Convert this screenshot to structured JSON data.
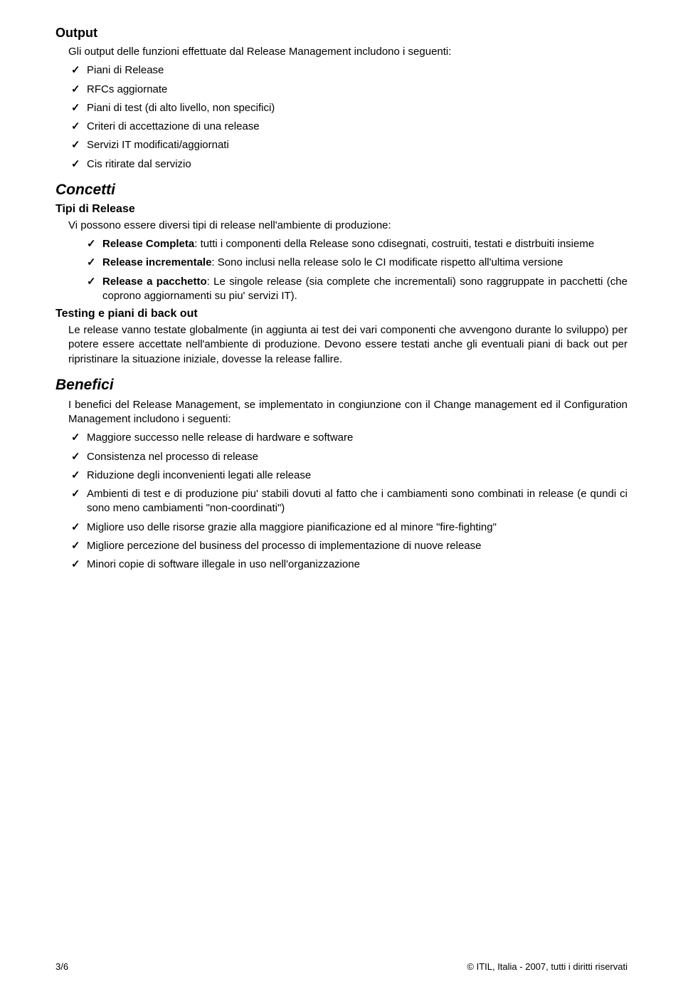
{
  "sections": {
    "output": {
      "heading": "Output",
      "intro": "Gli output delle funzioni effettuate dal Release Management includono i seguenti:",
      "items": [
        "Piani di Release",
        "RFCs aggiornate",
        "Piani di test (di alto livello, non specifici)",
        "Criteri di accettazione di una release",
        "Servizi IT modificati/aggiornati",
        "Cis ritirate dal servizio"
      ]
    },
    "concetti": {
      "heading": "Concetti",
      "tipi": {
        "heading": "Tipi di Release",
        "intro": "Vi possono essere diversi tipi di release nell'ambiente di produzione:",
        "items": [
          {
            "bold": "Release Completa",
            "rest": ": tutti i componenti della Release sono cdisegnati, costruiti, testati e distrbuiti insieme"
          },
          {
            "bold": "Release incrementale",
            "rest": ": Sono inclusi nella release solo le CI modificate rispetto all'ultima versione"
          },
          {
            "bold": "Release a pacchetto",
            "rest": ": Le singole release (sia complete che incrementali) sono raggruppate in pacchetti (che coprono aggiornamenti su piu' servizi IT)."
          }
        ]
      },
      "testing": {
        "heading": "Testing e piani di back out",
        "body": "Le release vanno testate globalmente (in aggiunta ai test dei vari componenti che avvengono durante lo sviluppo) per potere essere accettate nell'ambiente di produzione. Devono essere testati anche gli eventuali piani di back out per ripristinare la situazione iniziale, dovesse la release fallire."
      }
    },
    "benefici": {
      "heading": "Benefici",
      "intro": "I benefici del Release Management, se implementato in congiunzione con il Change management ed il Configuration Management includono i seguenti:",
      "items": [
        "Maggiore successo nelle release di hardware e software",
        "Consistenza nel processo di release",
        "Riduzione degli inconvenienti legati alle release",
        "Ambienti di test e di produzione piu' stabili dovuti al fatto che i cambiamenti sono combinati in release (e qundi ci sono meno cambiamenti \"non-coordinati\")",
        "Migliore uso delle risorse grazie alla maggiore pianificazione ed al minore \"fire-fighting\"",
        "Migliore percezione del business del processo di implementazione di nuove release",
        "Minori copie di software illegale in uso nell'organizzazione"
      ]
    }
  },
  "footer": {
    "left": "3/6",
    "right": "© ITIL, Italia - 2007, tutti i diritti riservati"
  }
}
